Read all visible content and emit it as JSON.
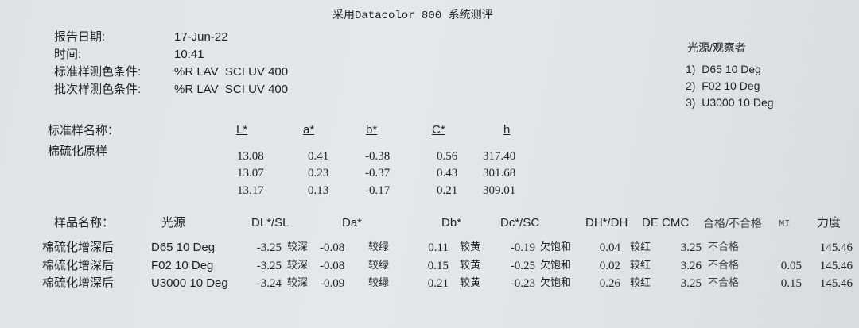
{
  "title": "采用Datacolor 800 系统测评",
  "info": {
    "report_date_label": "报告日期:",
    "report_date": "17-Jun-22",
    "time_label": "时间:",
    "time": "10:41",
    "std_cond_label": "标准样测色条件:",
    "std_cond": "%R LAV  SCI UV 400",
    "batch_cond_label": "批次样测色条件:",
    "batch_cond": "%R LAV  SCI UV 400"
  },
  "illuminants": {
    "label": "光源/观察者",
    "items": [
      "1)  D65 10 Deg",
      "2)  F02 10 Deg",
      "3)  U3000 10 Deg"
    ]
  },
  "standard": {
    "name_label": "标准样名称：",
    "name": "棉硫化原样",
    "headers": [
      "L*",
      "a*",
      "b*",
      "C*",
      "h"
    ],
    "rows": [
      [
        "13.08",
        "0.41",
        "-0.38",
        "0.56",
        "317.40"
      ],
      [
        "13.07",
        "0.23",
        "-0.37",
        "0.43",
        "301.68"
      ],
      [
        "13.17",
        "0.13",
        "-0.17",
        "0.21",
        "309.01"
      ]
    ]
  },
  "batch": {
    "headers": {
      "name": "样品名称：",
      "illuminant": "光源",
      "dl": "DL*/SL",
      "da": "Da*",
      "db": "Db*",
      "dc": "Dc*/SC",
      "dh": "DH*/DH",
      "de": "DE CMC",
      "pass": "合格/不合格",
      "mi": "MI",
      "strength": "力度"
    },
    "rows": [
      {
        "name": "棉硫化增深后",
        "illuminant": "D65 10 Deg",
        "dl": "-3.25",
        "dl_desc": "较深",
        "da": "-0.08",
        "da_desc": "较绿",
        "db": "0.11",
        "db_desc": "较黄",
        "dc": "-0.19",
        "dc_desc": "欠饱和",
        "dh": "0.04",
        "dh_desc": "较红",
        "de": "3.25",
        "pass": "不合格",
        "mi": "",
        "strength": "145.46"
      },
      {
        "name": "棉硫化增深后",
        "illuminant": "F02 10 Deg",
        "dl": "-3.25",
        "dl_desc": "较深",
        "da": "-0.08",
        "da_desc": "较绿",
        "db": "0.15",
        "db_desc": "较黄",
        "dc": "-0.25",
        "dc_desc": "欠饱和",
        "dh": "0.02",
        "dh_desc": "较红",
        "de": "3.26",
        "pass": "不合格",
        "mi": "0.05",
        "strength": "145.46"
      },
      {
        "name": "棉硫化增深后",
        "illuminant": "U3000 10 Deg",
        "dl": "-3.24",
        "dl_desc": "较深",
        "da": "-0.09",
        "da_desc": "较绿",
        "db": "0.21",
        "db_desc": "较黄",
        "dc": "-0.23",
        "dc_desc": "欠饱和",
        "dh": "0.26",
        "dh_desc": "较红",
        "de": "3.25",
        "pass": "不合格",
        "mi": "0.15",
        "strength": "145.46"
      }
    ]
  }
}
